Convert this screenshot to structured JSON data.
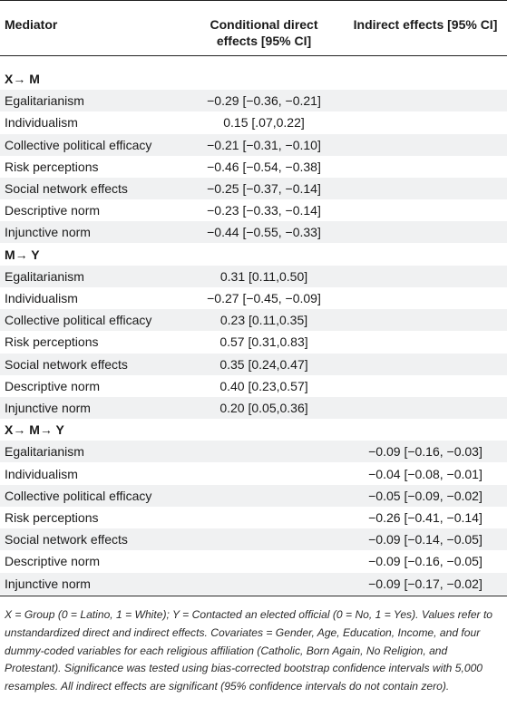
{
  "header": {
    "mediator": "Mediator",
    "direct_line1": "Conditional direct",
    "direct_line2": "effects [95% CI]",
    "indirect": "Indirect effects [95% CI]"
  },
  "sections": [
    {
      "title": "X→  M",
      "rows": [
        {
          "label": "Egalitarianism",
          "direct": "−0.29 [−0.36, −0.21]",
          "indirect": ""
        },
        {
          "label": "Individualism",
          "direct": "0.15 [.07,0.22]",
          "indirect": ""
        },
        {
          "label": "Collective political efficacy",
          "direct": "−0.21 [−0.31, −0.10]",
          "indirect": ""
        },
        {
          "label": "Risk perceptions",
          "direct": "−0.46 [−0.54, −0.38]",
          "indirect": ""
        },
        {
          "label": "Social network effects",
          "direct": "−0.25 [−0.37, −0.14]",
          "indirect": ""
        },
        {
          "label": "Descriptive norm",
          "direct": "−0.23 [−0.33, −0.14]",
          "indirect": ""
        },
        {
          "label": "Injunctive norm",
          "direct": "−0.44 [−0.55, −0.33]",
          "indirect": ""
        }
      ]
    },
    {
      "title": "M→  Y",
      "rows": [
        {
          "label": "Egalitarianism",
          "direct": "0.31 [0.11,0.50]",
          "indirect": ""
        },
        {
          "label": "Individualism",
          "direct": "−0.27 [−0.45, −0.09]",
          "indirect": ""
        },
        {
          "label": "Collective political efficacy",
          "direct": "0.23 [0.11,0.35]",
          "indirect": ""
        },
        {
          "label": "Risk perceptions",
          "direct": "0.57 [0.31,0.83]",
          "indirect": ""
        },
        {
          "label": "Social network effects",
          "direct": "0.35 [0.24,0.47]",
          "indirect": ""
        },
        {
          "label": "Descriptive norm",
          "direct": "0.40 [0.23,0.57]",
          "indirect": ""
        },
        {
          "label": "Injunctive norm",
          "direct": "0.20 [0.05,0.36]",
          "indirect": ""
        }
      ]
    },
    {
      "title": "X→  M→  Y",
      "rows": [
        {
          "label": "Egalitarianism",
          "direct": "",
          "indirect": "−0.09 [−0.16, −0.03]"
        },
        {
          "label": "Individualism",
          "direct": "",
          "indirect": "−0.04 [−0.08, −0.01]"
        },
        {
          "label": "Collective political efficacy",
          "direct": "",
          "indirect": "−0.05 [−0.09, −0.02]"
        },
        {
          "label": "Risk perceptions",
          "direct": "",
          "indirect": "−0.26 [−0.41, −0.14]"
        },
        {
          "label": "Social network effects",
          "direct": "",
          "indirect": "−0.09 [−0.14, −0.05]"
        },
        {
          "label": "Descriptive norm",
          "direct": "",
          "indirect": "−0.09 [−0.16, −0.05]"
        },
        {
          "label": "Injunctive norm",
          "direct": "",
          "indirect": "−0.09 [−0.17, −0.02]"
        }
      ]
    }
  ],
  "footnote": "X = Group (0 = Latino, 1 = White); Y = Contacted an elected official (0 = No, 1 = Yes). Values refer to unstandardized direct and indirect effects. Covariates = Gender, Age, Education, Income, and four dummy-coded variables for each religious affiliation (Catholic, Born Again, No Religion, and Protestant). Significance was tested using bias-corrected bootstrap confidence intervals with 5,000 resamples. All indirect effects are significant (95% confidence intervals do not contain zero)."
}
